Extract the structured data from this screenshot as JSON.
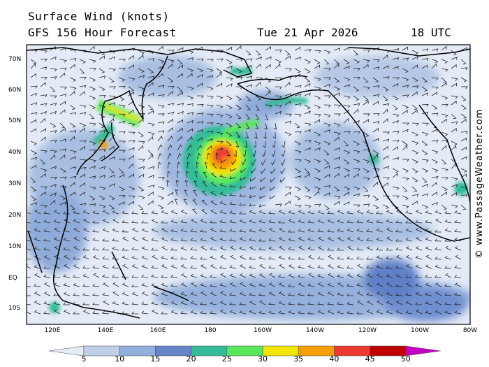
{
  "header": {
    "line1": "Surface Wind (knots)",
    "line2": "GFS 156 Hour Forecast",
    "date": "Tue 21 Apr 2026",
    "time": "18 UTC"
  },
  "map": {
    "lat_labels": [
      "70N",
      "60N",
      "50N",
      "40N",
      "30N",
      "20N",
      "10N",
      "EQ",
      "10S"
    ],
    "lon_labels": [
      "120E",
      "140E",
      "160E",
      "180",
      "160W",
      "140W",
      "120W",
      "100W",
      "80W"
    ],
    "features": [
      "low-pressure-storm",
      "secondary-low",
      "coastlines",
      "wind-barbs"
    ]
  },
  "watermark": "© www.PassageWeather.com",
  "colorbar": {
    "labels": [
      "5",
      "10",
      "15",
      "20",
      "25",
      "30",
      "35",
      "40",
      "45",
      "50"
    ],
    "colors": [
      "#e6ecf6",
      "#c0cfe8",
      "#92aedb",
      "#6585c8",
      "#33bc98",
      "#5ae85a",
      "#f2e600",
      "#f5a000",
      "#ee3a30",
      "#c00000",
      "#c000c0"
    ]
  }
}
